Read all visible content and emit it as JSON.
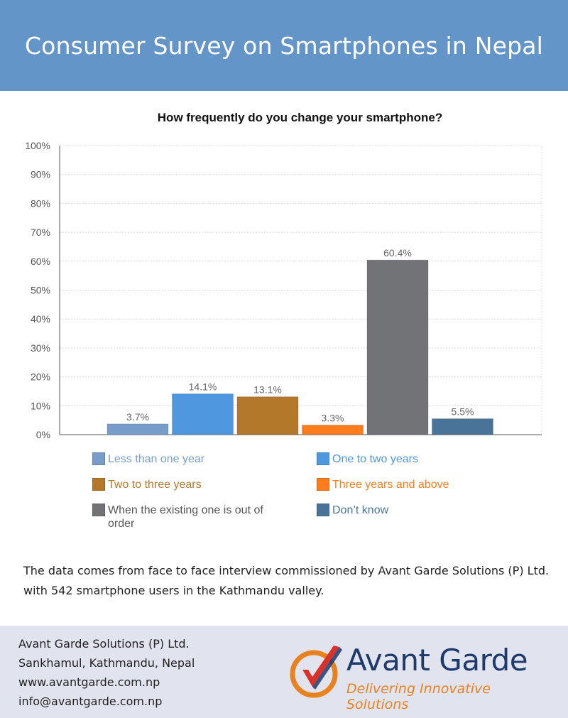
{
  "header": {
    "title": "Consumer Survey on Smartphones in Nepal"
  },
  "chart_data": {
    "type": "bar",
    "title": "How frequently do you change your smartphone?",
    "xlabel": "",
    "ylabel": "",
    "ylim": [
      0,
      100
    ],
    "yticks": [
      "0%",
      "10%",
      "20%",
      "30%",
      "40%",
      "50%",
      "60%",
      "70%",
      "80%",
      "90%",
      "100%"
    ],
    "grid": true,
    "legend_position": "bottom",
    "categories": [
      "Less than one year",
      "One to two years",
      "Two to three years",
      "Three years and above",
      "When the existing one is out of order",
      "Don’t know"
    ],
    "values": [
      3.7,
      14.1,
      13.1,
      3.3,
      60.4,
      5.5
    ],
    "data_labels": [
      "3.7%",
      "14.1%",
      "13.1%",
      "3.3%",
      "60.4%",
      "5.5%"
    ],
    "colors": [
      "#779ecb",
      "#4f98df",
      "#b4782a",
      "#fa7c1c",
      "#717377",
      "#4a7399"
    ]
  },
  "note": {
    "line1": "The data comes from face to face interview commissioned by Avant Garde Solutions (P) Ltd.",
    "line2": "with 542 smartphone users in the Kathmandu valley."
  },
  "footer": {
    "company": "Avant Garde Solutions (P) Ltd.",
    "address": "Sankhamul, Kathmandu, Nepal",
    "website": "www.avantgarde.com.np",
    "email": "info@avantgarde.com.np"
  },
  "logo": {
    "name": "Avant Garde",
    "tagline": "Delivering Innovative Solutions",
    "colors": {
      "navy": "#1d3a6a",
      "orange": "#e8821e",
      "red": "#d9312b"
    }
  }
}
